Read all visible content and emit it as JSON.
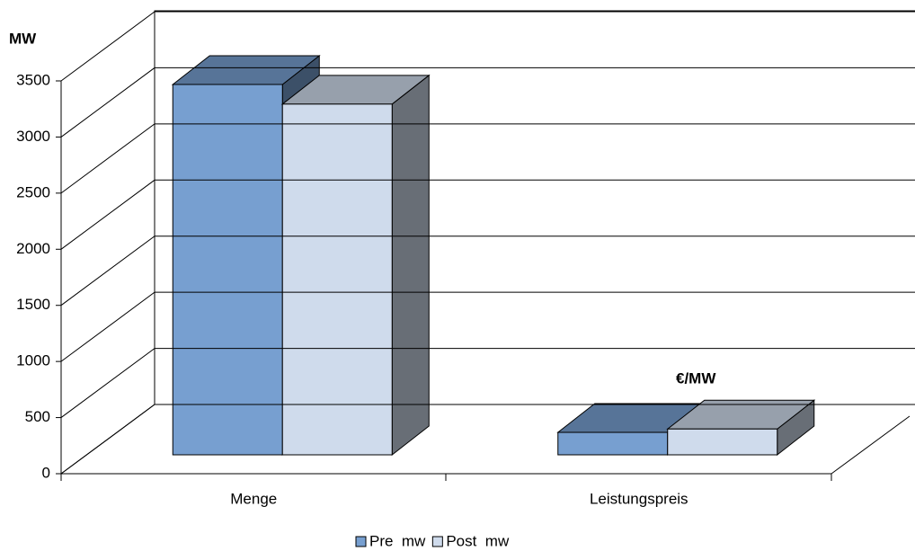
{
  "chart_data": {
    "type": "bar3d",
    "categories": [
      "Menge",
      "Leistungspreis"
    ],
    "series": [
      {
        "name": "Pre  mw",
        "color": "#779fd0",
        "values": [
          3300,
          200
        ]
      },
      {
        "name": "Post  mw",
        "color": "#cfdbec",
        "values": [
          3125,
          230
        ]
      }
    ],
    "ylim": [
      0,
      3500
    ],
    "yticks": [
      0,
      500,
      1000,
      1500,
      2000,
      2500,
      3000,
      3500
    ],
    "grid": true,
    "legend": "bottom",
    "annotations": [
      "MW",
      "€/MW"
    ]
  }
}
